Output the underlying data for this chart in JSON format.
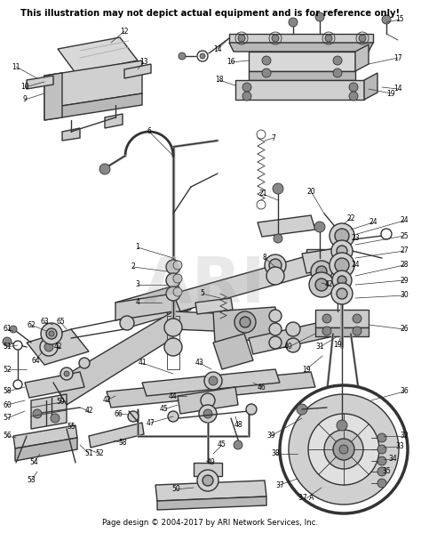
{
  "title_text": "This illustration may not depict actual equipment and is for reference only!",
  "footer_text": "Page design © 2004-2017 by ARI Network Services, Inc.",
  "bg_color": "#ffffff",
  "title_fontsize": 7.2,
  "footer_fontsize": 6.2,
  "title_color": "#111111",
  "footer_color": "#222222",
  "lc": "#333333",
  "lw_main": 1.0,
  "lw_thin": 0.6,
  "figsize": [
    4.74,
    5.99
  ],
  "dpi": 100,
  "watermark_text": "ARI",
  "watermark_alpha": 0.18,
  "watermark_fontsize": 52
}
